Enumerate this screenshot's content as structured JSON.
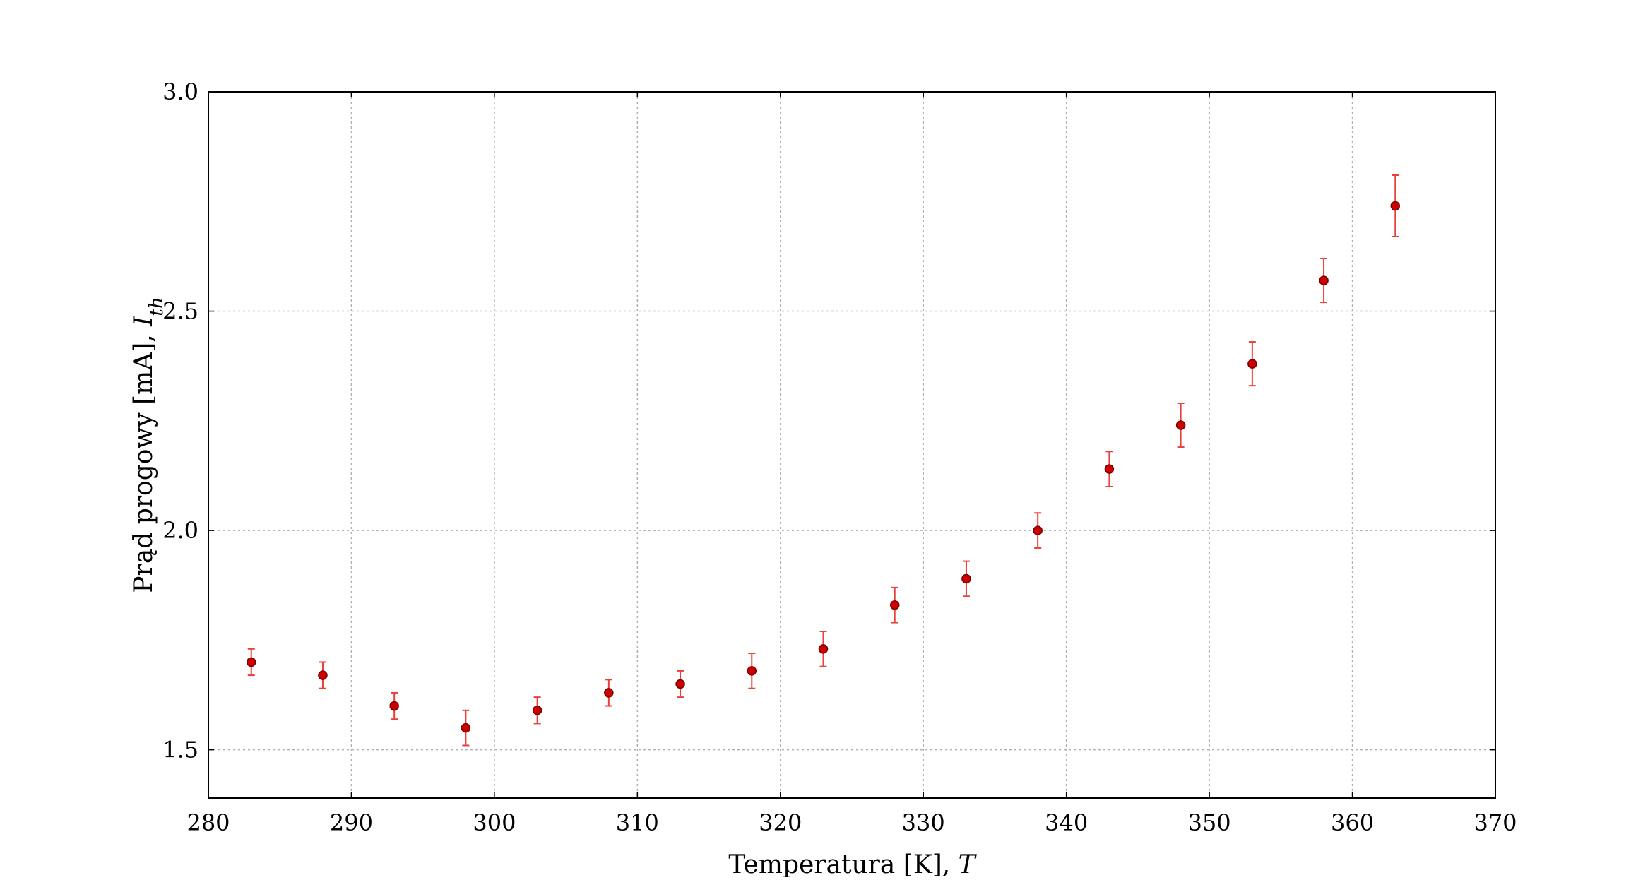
{
  "chart_data": {
    "type": "scatter",
    "title": "",
    "xlabel_text": "Temperatura [K], ",
    "xlabel_symbol": "T",
    "ylabel_text": "Prąd progowy [mA], ",
    "ylabel_symbol": "I",
    "ylabel_subscript": "th",
    "xlim": [
      280,
      370
    ],
    "ylim": [
      1.39,
      3.0
    ],
    "xticks": [
      280,
      290,
      300,
      310,
      320,
      330,
      340,
      350,
      360,
      370
    ],
    "xtick_labels": [
      "280",
      "290",
      "300",
      "310",
      "320",
      "330",
      "340",
      "350",
      "360",
      "370"
    ],
    "yticks": [
      1.5,
      2.0,
      2.5,
      3.0
    ],
    "ytick_labels": [
      "1.5",
      "2.0",
      "2.5",
      "3.0"
    ],
    "grid": true,
    "marker_color": "#cc0000",
    "errorbar_color": "#e8403a",
    "points": [
      {
        "x": 283,
        "y": 1.7,
        "err": 0.03
      },
      {
        "x": 288,
        "y": 1.67,
        "err": 0.03
      },
      {
        "x": 293,
        "y": 1.6,
        "err": 0.03
      },
      {
        "x": 298,
        "y": 1.55,
        "err": 0.04
      },
      {
        "x": 303,
        "y": 1.59,
        "err": 0.03
      },
      {
        "x": 308,
        "y": 1.63,
        "err": 0.03
      },
      {
        "x": 313,
        "y": 1.65,
        "err": 0.03
      },
      {
        "x": 318,
        "y": 1.68,
        "err": 0.04
      },
      {
        "x": 323,
        "y": 1.73,
        "err": 0.04
      },
      {
        "x": 328,
        "y": 1.83,
        "err": 0.04
      },
      {
        "x": 333,
        "y": 1.89,
        "err": 0.04
      },
      {
        "x": 338,
        "y": 2.0,
        "err": 0.04
      },
      {
        "x": 343,
        "y": 2.14,
        "err": 0.04
      },
      {
        "x": 348,
        "y": 2.24,
        "err": 0.05
      },
      {
        "x": 353,
        "y": 2.38,
        "err": 0.05
      },
      {
        "x": 358,
        "y": 2.57,
        "err": 0.05
      },
      {
        "x": 363,
        "y": 2.74,
        "err": 0.07
      }
    ]
  }
}
